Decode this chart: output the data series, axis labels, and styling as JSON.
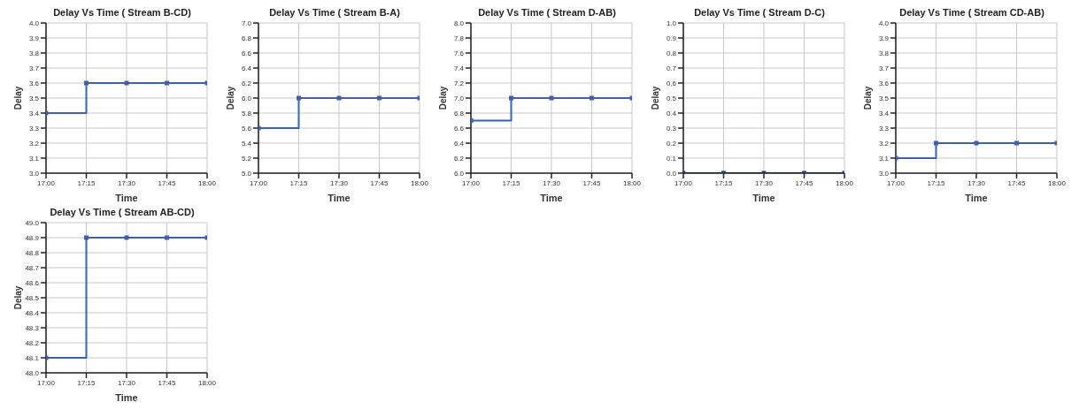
{
  "chart_data": [
    {
      "type": "step",
      "title": "Delay Vs Time ( Stream B-CD)",
      "xlabel": "Time",
      "ylabel": "Delay",
      "x": [
        17,
        17.25,
        17.5,
        17.75,
        18
      ],
      "series": [
        {
          "color": "#3f5fb0",
          "values": [
            3.4,
            3.6,
            3.6,
            3.6,
            3.6
          ]
        }
      ],
      "xlim": [
        17,
        18
      ],
      "xticks": [
        {
          "value": 17,
          "label": "17:00"
        },
        {
          "value": 17.25,
          "label": "17:15"
        },
        {
          "value": 17.5,
          "label": "17:30"
        },
        {
          "value": 17.75,
          "label": "17:45"
        },
        {
          "value": 18,
          "label": "18:00"
        }
      ],
      "ylim": [
        3.0,
        4.0
      ],
      "yticks": [
        {
          "value": 3.0,
          "label": "3.0"
        },
        3.1,
        3.2,
        3.3,
        3.4,
        3.5,
        3.6,
        3.7,
        3.8,
        3.9,
        {
          "value": 4.0,
          "label": "4.0"
        }
      ],
      "grid": true,
      "marker": "square",
      "line_style": "solid"
    },
    {
      "type": "step",
      "title": "Delay Vs Time ( Stream B-A)",
      "xlabel": "Time",
      "ylabel": "Delay",
      "x": [
        17,
        17.25,
        17.5,
        17.75,
        18
      ],
      "series": [
        {
          "color": "#3f5fb0",
          "values": [
            5.6,
            6.0,
            6.0,
            6.0,
            6.0
          ]
        }
      ],
      "xlim": [
        17,
        18
      ],
      "xticks": [
        {
          "value": 17,
          "label": "17:00"
        },
        {
          "value": 17.25,
          "label": "17:15"
        },
        {
          "value": 17.5,
          "label": "17:30"
        },
        {
          "value": 17.75,
          "label": "17:45"
        },
        {
          "value": 18,
          "label": "18:00"
        }
      ],
      "ylim": [
        5.0,
        7.0
      ],
      "yticks": [
        {
          "value": 5.0,
          "label": "5.0"
        },
        5.2,
        5.4,
        5.6,
        5.8,
        {
          "value": 6.0,
          "label": "6.0"
        },
        6.2,
        6.4,
        6.6,
        6.8,
        {
          "value": 7.0,
          "label": "7.0"
        }
      ],
      "grid": true,
      "marker": "square",
      "line_style": "solid"
    },
    {
      "type": "step",
      "title": "Delay Vs Time ( Stream D-AB)",
      "xlabel": "Time",
      "ylabel": "Delay",
      "x": [
        17,
        17.25,
        17.5,
        17.75,
        18
      ],
      "series": [
        {
          "color": "#3f5fb0",
          "values": [
            6.7,
            7.0,
            7.0,
            7.0,
            7.0
          ]
        }
      ],
      "xlim": [
        17,
        18
      ],
      "xticks": [
        {
          "value": 17,
          "label": "17:00"
        },
        {
          "value": 17.25,
          "label": "17:15"
        },
        {
          "value": 17.5,
          "label": "17:30"
        },
        {
          "value": 17.75,
          "label": "17:45"
        },
        {
          "value": 18,
          "label": "18:00"
        }
      ],
      "ylim": [
        6.0,
        8.0
      ],
      "yticks": [
        {
          "value": 6.0,
          "label": "6.0"
        },
        6.2,
        6.4,
        6.6,
        6.8,
        {
          "value": 7.0,
          "label": "7.0"
        },
        7.2,
        7.4,
        7.6,
        7.8,
        {
          "value": 8.0,
          "label": "8.0"
        }
      ],
      "grid": true,
      "marker": "square",
      "line_style": "solid"
    },
    {
      "type": "step",
      "title": "Delay Vs Time ( Stream D-C)",
      "xlabel": "Time",
      "ylabel": "Delay",
      "x": [
        17,
        17.25,
        17.5,
        17.75,
        18
      ],
      "series": [
        {
          "color": "#1f3a80",
          "values": [
            0,
            0,
            0,
            0,
            0
          ]
        }
      ],
      "xlim": [
        17,
        18
      ],
      "xticks": [
        {
          "value": 17,
          "label": "17:00"
        },
        {
          "value": 17.25,
          "label": "17:15"
        },
        {
          "value": 17.5,
          "label": "17:30"
        },
        {
          "value": 17.75,
          "label": "17:45"
        },
        {
          "value": 18,
          "label": "18:00"
        }
      ],
      "ylim": [
        0.0,
        1.0
      ],
      "yticks": [
        {
          "value": 0.0,
          "label": "0.0"
        },
        0.1,
        0.2,
        0.3,
        0.4,
        0.5,
        0.6,
        0.7,
        0.8,
        0.9,
        {
          "value": 1.0,
          "label": "1.0"
        }
      ],
      "grid": true,
      "marker": "square",
      "line_style": "solid"
    },
    {
      "type": "step",
      "title": "Delay Vs Time ( Stream CD-AB)",
      "xlabel": "Time",
      "ylabel": "Delay",
      "x": [
        17,
        17.25,
        17.5,
        17.75,
        18
      ],
      "series": [
        {
          "color": "#3f5fb0",
          "values": [
            3.1,
            3.2,
            3.2,
            3.2,
            3.2
          ]
        }
      ],
      "xlim": [
        17,
        18
      ],
      "xticks": [
        {
          "value": 17,
          "label": "17:00"
        },
        {
          "value": 17.25,
          "label": "17:15"
        },
        {
          "value": 17.5,
          "label": "17:30"
        },
        {
          "value": 17.75,
          "label": "17:45"
        },
        {
          "value": 18,
          "label": "18:00"
        }
      ],
      "ylim": [
        3.0,
        4.0
      ],
      "yticks": [
        {
          "value": 3.0,
          "label": "3.0"
        },
        3.1,
        3.2,
        3.3,
        3.4,
        3.5,
        3.6,
        3.7,
        3.8,
        3.9,
        {
          "value": 4.0,
          "label": "4.0"
        }
      ],
      "grid": true,
      "marker": "square",
      "line_style": "solid"
    },
    {
      "type": "step",
      "title": "Delay Vs Time ( Stream AB-CD)",
      "xlabel": "Time",
      "ylabel": "Delay",
      "x": [
        17,
        17.25,
        17.5,
        17.75,
        18
      ],
      "series": [
        {
          "color": "#3f5fb0",
          "values": [
            48.1,
            48.9,
            48.9,
            48.9,
            48.9
          ]
        }
      ],
      "xlim": [
        17,
        18
      ],
      "xticks": [
        {
          "value": 17,
          "label": "17:00"
        },
        {
          "value": 17.25,
          "label": "17:15"
        },
        {
          "value": 17.5,
          "label": "17:30"
        },
        {
          "value": 17.75,
          "label": "17:45"
        },
        {
          "value": 18,
          "label": "18:00"
        }
      ],
      "ylim": [
        48.0,
        49.0
      ],
      "yticks": [
        {
          "value": 48.0,
          "label": "48.0"
        },
        48.1,
        48.2,
        48.3,
        48.4,
        48.5,
        48.6,
        48.7,
        48.8,
        48.9,
        {
          "value": 49.0,
          "label": "49.0"
        }
      ],
      "grid": true,
      "marker": "square",
      "line_style": "solid"
    }
  ]
}
